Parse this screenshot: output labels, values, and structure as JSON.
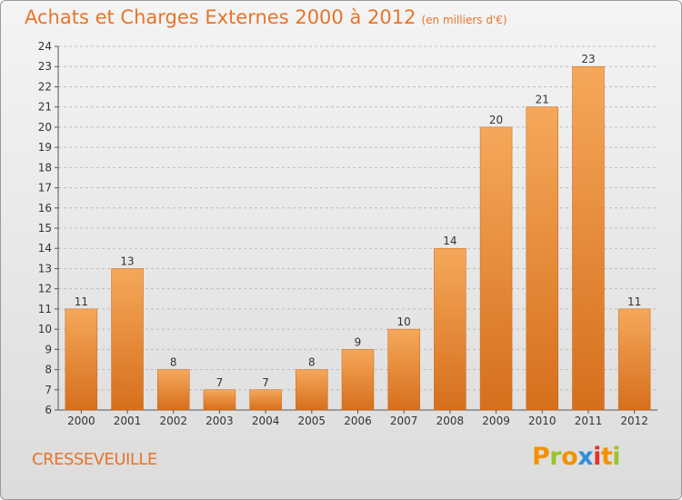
{
  "chart_data": {
    "type": "bar",
    "title": "Achats et Charges Externes 2000 à 2012",
    "subtitle": "(en milliers d'€)",
    "categories": [
      "2000",
      "2001",
      "2002",
      "2003",
      "2004",
      "2005",
      "2006",
      "2007",
      "2008",
      "2009",
      "2010",
      "2011",
      "2012"
    ],
    "values": [
      11,
      13,
      8,
      7,
      7,
      8,
      9,
      10,
      14,
      20,
      21,
      23,
      11
    ],
    "ylim": [
      6,
      24
    ],
    "yticks": [
      6,
      7,
      8,
      9,
      10,
      11,
      12,
      13,
      14,
      15,
      16,
      17,
      18,
      19,
      20,
      21,
      22,
      23,
      24
    ],
    "grid": "horizontal dashed",
    "bar_color": "#e8842f",
    "bar_color_top": "#f5a85a"
  },
  "location": "CRESSEVEUILLE",
  "logo": {
    "letters": [
      "P",
      "r",
      "o",
      "x",
      "i",
      "t",
      "i"
    ],
    "colors": [
      "#f39200",
      "#9bc428",
      "#f39200",
      "#2f8fd8",
      "#e5332a",
      "#f39200",
      "#9bc428"
    ]
  }
}
